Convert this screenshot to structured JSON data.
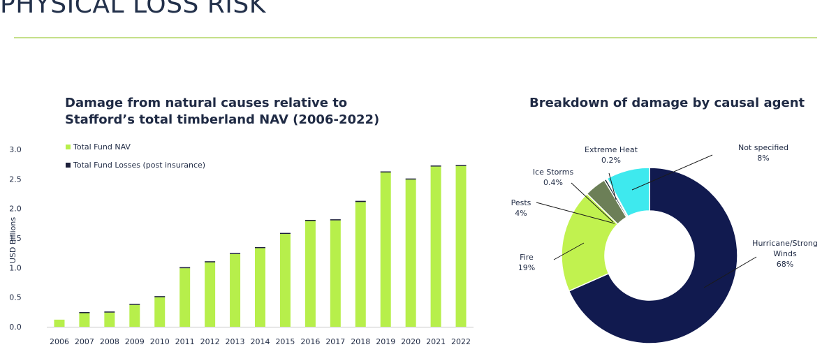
{
  "page": {
    "title": "PHYSICAL LOSS RISK",
    "accent_color": "#c5e08a"
  },
  "chart_data": [
    {
      "type": "bar",
      "title": "Damage from natural causes relative to Stafford’s total timberland NAV (2006-2022)",
      "ylabel": "USD Billions",
      "xlabel": "",
      "ylim": [
        0,
        3.0
      ],
      "yticks": [
        "0.0",
        "0.5",
        "1.0",
        "1.5",
        "2.0",
        "2.5",
        "3.0"
      ],
      "categories": [
        "2006",
        "2007",
        "2008",
        "2009",
        "2010",
        "2011",
        "2012",
        "2013",
        "2014",
        "2015",
        "2016",
        "2017",
        "2018",
        "2019",
        "2020",
        "2021",
        "2022"
      ],
      "stacked": true,
      "series": [
        {
          "name": "Total Fund NAV",
          "color": "#b7ef4b",
          "values": [
            0.12,
            0.23,
            0.24,
            0.37,
            0.5,
            0.99,
            1.09,
            1.23,
            1.33,
            1.57,
            1.79,
            1.8,
            2.11,
            2.61,
            2.49,
            2.71,
            2.72
          ]
        },
        {
          "name": "Total Fund Losses (post insurance)",
          "color": "#1c1f3a",
          "values": [
            0.0,
            0.004,
            0.005,
            0.01,
            0.012,
            0.01,
            0.01,
            0.01,
            0.01,
            0.012,
            0.012,
            0.012,
            0.02,
            0.015,
            0.012,
            0.015,
            0.015
          ]
        }
      ],
      "grid": false,
      "legend": "top-left"
    },
    {
      "type": "pie",
      "title": "Breakdown of damage by causal agent",
      "donut": true,
      "slices": [
        {
          "label": "Hurricane/Strong Winds",
          "pct_label": "68%",
          "value": 68.4,
          "color": "#111a4f"
        },
        {
          "label": "Fire",
          "pct_label": "19%",
          "value": 19,
          "color": "#c1f24f"
        },
        {
          "label": "Pests",
          "pct_label": "4%",
          "value": 4,
          "color": "#6c7f57"
        },
        {
          "label": "Ice Storms",
          "pct_label": "0.4%",
          "value": 0.4,
          "color": "#1c2a33"
        },
        {
          "label": "Extreme Heat",
          "pct_label": "0.2%",
          "value": 0.2,
          "color": "#bfc7c4"
        },
        {
          "label": "Not specified",
          "pct_label": "8%",
          "value": 8,
          "color": "#3ee9ee"
        }
      ]
    }
  ]
}
